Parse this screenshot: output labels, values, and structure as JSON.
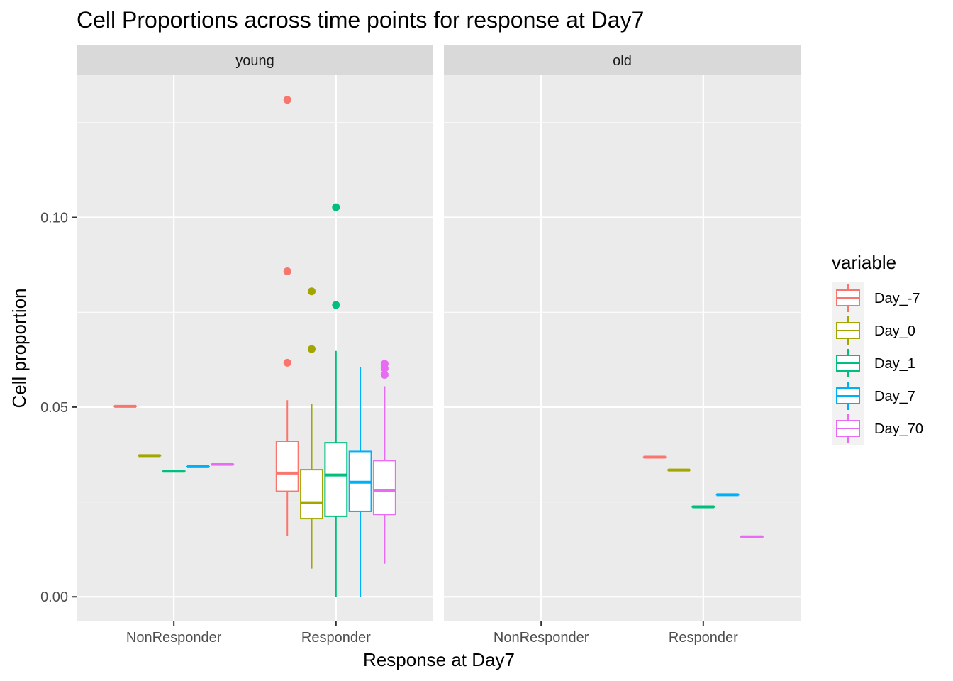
{
  "chart_data": {
    "type": "boxplot",
    "title": "Cell Proportions across time points for response at Day7",
    "xlabel": "Response at Day7",
    "ylabel": "Cell proportion",
    "ylim": [
      -0.0065,
      0.1375
    ],
    "yticks": [
      0.0,
      0.05,
      0.1
    ],
    "ytick_labels": [
      "0.00",
      "0.05",
      "0.10"
    ],
    "categories": [
      "NonResponder",
      "Responder"
    ],
    "grid": true,
    "legend": {
      "title": "variable",
      "position": "right",
      "entries": [
        {
          "name": "Day_-7",
          "color": "#F8766D"
        },
        {
          "name": "Day_0",
          "color": "#A3A500"
        },
        {
          "name": "Day_1",
          "color": "#00BF7D"
        },
        {
          "name": "Day_7",
          "color": "#00B0F6"
        },
        {
          "name": "Day_70",
          "color": "#E76BF3"
        }
      ]
    },
    "facets": [
      {
        "label": "young",
        "groups": [
          {
            "category": "NonResponder",
            "boxes": [
              {
                "series": "Day_-7",
                "min": 0.0502,
                "q1": 0.0502,
                "median": 0.0502,
                "q3": 0.0502,
                "max": 0.0502,
                "outliers": []
              },
              {
                "series": "Day_0",
                "min": 0.0372,
                "q1": 0.0372,
                "median": 0.0372,
                "q3": 0.0372,
                "max": 0.0372,
                "outliers": []
              },
              {
                "series": "Day_1",
                "min": 0.0331,
                "q1": 0.0331,
                "median": 0.0331,
                "q3": 0.0331,
                "max": 0.0331,
                "outliers": []
              },
              {
                "series": "Day_7",
                "min": 0.0343,
                "q1": 0.0343,
                "median": 0.0343,
                "q3": 0.0343,
                "max": 0.0343,
                "outliers": []
              },
              {
                "series": "Day_70",
                "min": 0.0349,
                "q1": 0.0349,
                "median": 0.0349,
                "q3": 0.0349,
                "max": 0.0349,
                "outliers": []
              }
            ]
          },
          {
            "category": "Responder",
            "boxes": [
              {
                "series": "Day_-7",
                "min": 0.0161,
                "q1": 0.0278,
                "median": 0.0326,
                "q3": 0.041,
                "max": 0.0518,
                "outliers": [
                  0.131,
                  0.0858,
                  0.0617
                ]
              },
              {
                "series": "Day_0",
                "min": 0.0074,
                "q1": 0.0206,
                "median": 0.0248,
                "q3": 0.0335,
                "max": 0.0508,
                "outliers": [
                  0.0805,
                  0.0653
                ]
              },
              {
                "series": "Day_1",
                "min": 0.0,
                "q1": 0.0212,
                "median": 0.0321,
                "q3": 0.0406,
                "max": 0.0648,
                "outliers": [
                  0.1027,
                  0.0769
                ]
              },
              {
                "series": "Day_7",
                "min": 0.0,
                "q1": 0.0225,
                "median": 0.0302,
                "q3": 0.0383,
                "max": 0.0605,
                "outliers": []
              },
              {
                "series": "Day_70",
                "min": 0.0087,
                "q1": 0.0217,
                "median": 0.0279,
                "q3": 0.0359,
                "max": 0.0555,
                "outliers": [
                  0.0614,
                  0.0602,
                  0.0585
                ]
              }
            ]
          }
        ]
      },
      {
        "label": "old",
        "groups": [
          {
            "category": "NonResponder",
            "boxes": []
          },
          {
            "category": "Responder",
            "boxes": [
              {
                "series": "Day_-7",
                "min": 0.0368,
                "q1": 0.0368,
                "median": 0.0368,
                "q3": 0.0368,
                "max": 0.0368,
                "outliers": []
              },
              {
                "series": "Day_0",
                "min": 0.0334,
                "q1": 0.0334,
                "median": 0.0334,
                "q3": 0.0334,
                "max": 0.0334,
                "outliers": []
              },
              {
                "series": "Day_1",
                "min": 0.0237,
                "q1": 0.0237,
                "median": 0.0237,
                "q3": 0.0237,
                "max": 0.0237,
                "outliers": []
              },
              {
                "series": "Day_7",
                "min": 0.0269,
                "q1": 0.0269,
                "median": 0.0269,
                "q3": 0.0269,
                "max": 0.0269,
                "outliers": []
              },
              {
                "series": "Day_70",
                "min": 0.0158,
                "q1": 0.0158,
                "median": 0.0158,
                "q3": 0.0158,
                "max": 0.0158,
                "outliers": []
              }
            ]
          }
        ]
      }
    ]
  }
}
